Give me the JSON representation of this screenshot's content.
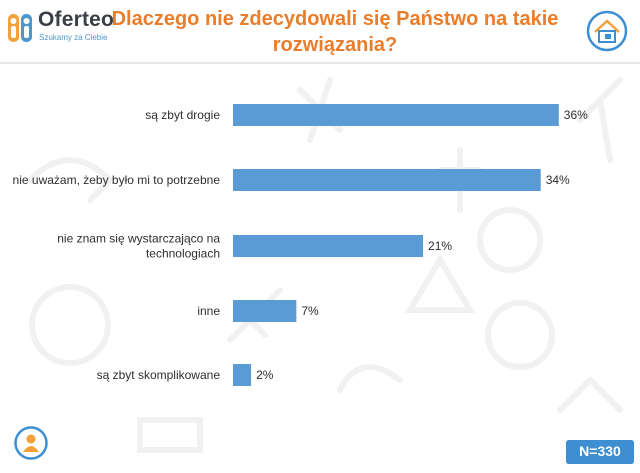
{
  "header": {
    "logo_name": "Oferteo",
    "logo_tagline": "Szukamy za Ciebie",
    "title_line1": "Dlaczego nie zdecydowali się Państwo na takie",
    "title_line2": "rozwiązania?",
    "logo_icon": "people-logo-icon",
    "corner_icon": "house-icon"
  },
  "colors": {
    "bar": "#5b9bd5",
    "title": "#ea7d2c",
    "accent": "#3d8fd1"
  },
  "chart_data": {
    "type": "bar",
    "orientation": "horizontal",
    "categories": [
      [
        "są zbyt drogie"
      ],
      [
        "nie uważam, żeby było mi to potrzebne"
      ],
      [
        "nie znam się wystarczająco na",
        "technologiach"
      ],
      [
        "inne"
      ],
      [
        "są zbyt skomplikowane"
      ]
    ],
    "values": [
      36,
      34,
      21,
      7,
      2
    ],
    "value_labels": [
      "36%",
      "34%",
      "21%",
      "7%",
      "2%"
    ],
    "unit": "%",
    "xlim": [
      0,
      40
    ],
    "grid": false,
    "legend": "none"
  },
  "footer": {
    "sample_size": "N=330",
    "person_icon": "person-icon"
  }
}
